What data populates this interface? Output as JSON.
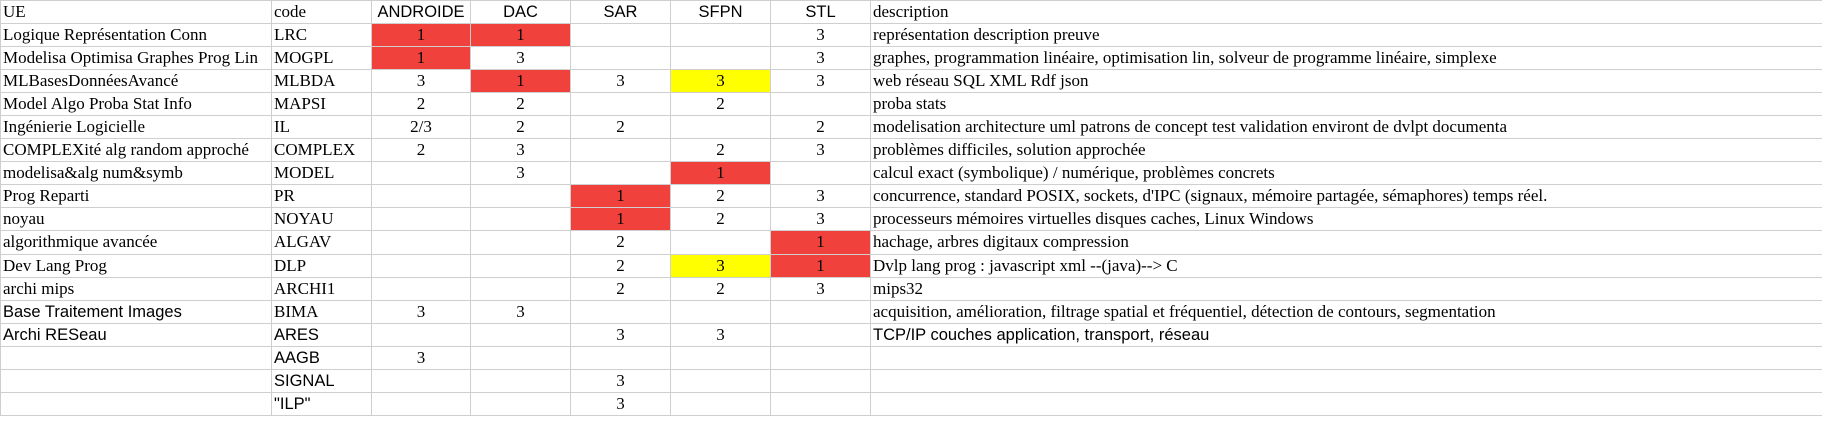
{
  "colors": {
    "red": "#f0413d",
    "yellow": "#ffff00"
  },
  "header": [
    "UE",
    "code",
    "ANDROIDE",
    "DAC",
    "SAR",
    "SFPN",
    "STL",
    "description"
  ],
  "rows": [
    {
      "cells": [
        "Logique Représentation Conn",
        "LRC",
        "1",
        "1",
        "",
        "",
        "3",
        "représentation description preuve"
      ],
      "fills": [
        "",
        "",
        "red",
        "red",
        "",
        "",
        "",
        ""
      ]
    },
    {
      "cells": [
        "Modelisa Optimisa Graphes Prog Lin",
        "MOGPL",
        "1",
        "3",
        "",
        "",
        "3",
        "graphes, programmation linéaire, optimisation lin, solveur de programme linéaire, simplexe"
      ],
      "fills": [
        "",
        "",
        "red",
        "",
        "",
        "",
        "",
        ""
      ]
    },
    {
      "cells": [
        "MLBasesDonnéesAvancé",
        "MLBDA",
        "3",
        "1",
        "3",
        "3",
        "3",
        "web réseau SQL XML Rdf json"
      ],
      "fills": [
        "",
        "",
        "",
        "red",
        "",
        "yellow",
        "",
        ""
      ]
    },
    {
      "cells": [
        "Model Algo Proba Stat Info",
        "MAPSI",
        "2",
        "2",
        "",
        "2",
        "",
        "proba stats"
      ],
      "fills": [
        "",
        "",
        "",
        "",
        "",
        "",
        "",
        ""
      ]
    },
    {
      "cells": [
        "Ingénierie Logicielle",
        "IL",
        "2/3",
        "2",
        "2",
        "",
        "2",
        "modelisation architecture uml patrons de concept test validation environt de dvlpt  documenta"
      ],
      "fills": [
        "",
        "",
        "",
        "",
        "",
        "",
        "",
        ""
      ]
    },
    {
      "cells": [
        "COMPLEXité alg random approché",
        "COMPLEX",
        "2",
        "3",
        "",
        "2",
        "3",
        "problèmes difficiles, solution approchée"
      ],
      "fills": [
        "",
        "",
        "",
        "",
        "",
        "",
        "",
        ""
      ]
    },
    {
      "cells": [
        "modelisa&alg num&symb",
        "MODEL",
        "",
        "3",
        "",
        "1",
        "",
        "calcul exact (symbolique) / numérique, problèmes concrets"
      ],
      "fills": [
        "",
        "",
        "",
        "",
        "",
        "red",
        "",
        ""
      ]
    },
    {
      "cells": [
        "Prog Reparti",
        "PR",
        "",
        "",
        "1",
        "2",
        "3",
        "concurrence, standard POSIX, sockets, d'IPC (signaux, mémoire partagée, sémaphores) temps réel."
      ],
      "fills": [
        "",
        "",
        "",
        "",
        "red",
        "",
        "",
        ""
      ]
    },
    {
      "cells": [
        "noyau",
        "NOYAU",
        "",
        "",
        "1",
        "2",
        "3",
        "processeurs mémoires virtuelles disques caches, Linux Windows"
      ],
      "fills": [
        "",
        "",
        "",
        "",
        "red",
        "",
        "",
        ""
      ]
    },
    {
      "cells": [
        "algorithmique avancée",
        "ALGAV",
        "",
        "",
        "2",
        "",
        "1",
        "hachage, arbres digitaux compression"
      ],
      "fills": [
        "",
        "",
        "",
        "",
        "",
        "",
        "red",
        ""
      ]
    },
    {
      "cells": [
        "Dev Lang Prog",
        "DLP",
        "",
        "",
        "2",
        "3",
        "1",
        "Dvlp lang prog : javascript xml  --(java)--> C"
      ],
      "fills": [
        "",
        "",
        "",
        "",
        "",
        "yellow",
        "red",
        ""
      ]
    },
    {
      "cells": [
        "archi mips",
        "ARCHI1",
        "",
        "",
        "2",
        "2",
        "3",
        "mips32"
      ],
      "fills": [
        "",
        "",
        "",
        "",
        "",
        "",
        "",
        ""
      ]
    },
    {
      "cells": [
        "Base Traitement Images",
        "BIMA",
        "3",
        "3",
        "",
        "",
        "",
        "acquisition, amélioration, filtrage spatial et fréquentiel, détection de contours, segmentation"
      ],
      "fills": [
        "",
        "",
        "",
        "",
        "",
        "",
        "",
        ""
      ],
      "sans": [
        0
      ]
    },
    {
      "cells": [
        "Archi RESeau",
        "ARES",
        "",
        "",
        "3",
        "3",
        "",
        "TCP/IP couches application, transport, réseau"
      ],
      "fills": [
        "",
        "",
        "",
        "",
        "",
        "",
        "",
        ""
      ],
      "sans": [
        0,
        1,
        7
      ]
    },
    {
      "cells": [
        "",
        "AAGB",
        "3",
        "",
        "",
        "",
        "",
        ""
      ],
      "fills": [
        "",
        "",
        "",
        "",
        "",
        "",
        "",
        ""
      ],
      "sans": [
        1
      ]
    },
    {
      "cells": [
        "",
        "SIGNAL",
        "",
        "",
        "3",
        "",
        "",
        ""
      ],
      "fills": [
        "",
        "",
        "",
        "",
        "",
        "",
        "",
        ""
      ],
      "sans": [
        1
      ]
    },
    {
      "cells": [
        "",
        "\"ILP\"",
        "",
        "",
        "3",
        "",
        "",
        ""
      ],
      "fills": [
        "",
        "",
        "",
        "",
        "",
        "",
        "",
        ""
      ],
      "sans": [
        1
      ]
    }
  ]
}
